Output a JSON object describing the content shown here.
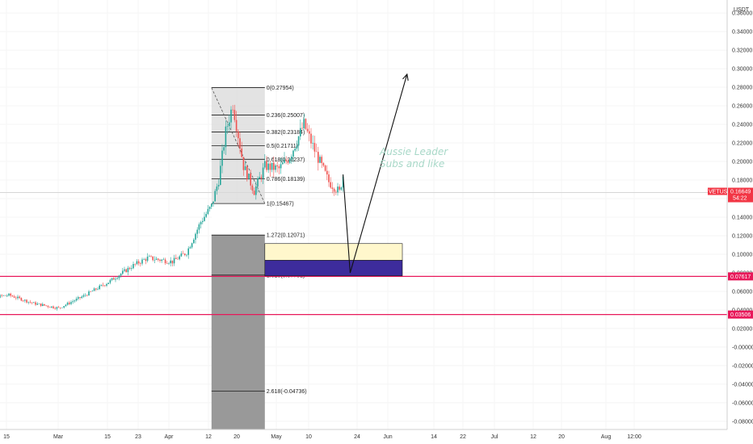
{
  "chart_data": {
    "type": "candlestick",
    "symbol": "VETUSDT",
    "quote_currency": "USDT",
    "ylim": [
      -0.0888,
      0.374
    ],
    "y_ticks": [
      "0.36000",
      "0.34000",
      "0.32000",
      "0.30000",
      "0.28000",
      "0.26000",
      "0.24000",
      "0.22000",
      "0.20000",
      "0.18000",
      "0.16000",
      "0.14000",
      "0.12000",
      "0.10000",
      "0.08000",
      "0.06000",
      "0.04000",
      "0.02000",
      "-0.00000",
      "-0.02000",
      "-0.04000",
      "-0.06000",
      "-0.08000"
    ],
    "x_labels": [
      "15",
      "Mar",
      "15",
      "23",
      "Apr",
      "12",
      "20",
      "May",
      "10",
      "24",
      "Jun",
      "14",
      "22",
      "Jul",
      "12",
      "20",
      "Aug",
      "12:00"
    ],
    "last_price": {
      "value": 0.16649,
      "label": "VETUSDT",
      "value_text": "0.16649",
      "countdown": "54:22",
      "color": "#f23645"
    },
    "horizontal_lines": [
      {
        "value": 0.07617,
        "label": "0.07617",
        "color": "#e8185a"
      },
      {
        "value": 0.03506,
        "label": "0.03506",
        "color": "#e8185a"
      }
    ],
    "fib_retracement": {
      "levels": [
        {
          "ratio": 0,
          "price": 0.27954,
          "label": "0(0.27954)"
        },
        {
          "ratio": 0.236,
          "price": 0.25007,
          "label": "0.236(0.25007)"
        },
        {
          "ratio": 0.382,
          "price": 0.23184,
          "label": "0.382(0.23184)"
        },
        {
          "ratio": 0.5,
          "price": 0.21711,
          "label": "0.5(0.21711)"
        },
        {
          "ratio": 0.618,
          "price": 0.20237,
          "label": "0.618(0.20237)"
        },
        {
          "ratio": 0.786,
          "price": 0.18139,
          "label": "0.786(0.18139)"
        },
        {
          "ratio": 1,
          "price": 0.15467,
          "label": "1(0.15467)"
        },
        {
          "ratio": 1.272,
          "price": 0.12071,
          "label": "1.272(0.12071)"
        },
        {
          "ratio": 1.618,
          "price": 0.07751,
          "label": "1.618(0.07751)"
        },
        {
          "ratio": 2.618,
          "price": -0.04736,
          "label": "2.618(-0.04736)"
        }
      ]
    },
    "zones": [
      {
        "name": "upper",
        "top": 0.1115,
        "bottom": 0.0935,
        "color": "#fff7cc"
      },
      {
        "name": "lower",
        "top": 0.0935,
        "bottom": 0.0768,
        "color": "#3d2c9c"
      }
    ],
    "projection": [
      {
        "date": "2021-05-20",
        "price": 0.186
      },
      {
        "date": "2021-05-22",
        "price": 0.08
      },
      {
        "date": "2021-06-07",
        "price": 0.294
      }
    ],
    "annotation": {
      "lines": [
        "Aussie Leader",
        "Subs and like"
      ]
    },
    "candle_colors": {
      "up": "#26a69a",
      "down": "#ef5350"
    },
    "price_path": [
      {
        "date": "2021-02-05",
        "price": 0.051
      },
      {
        "date": "2021-02-15",
        "price": 0.056
      },
      {
        "date": "2021-02-22",
        "price": 0.047
      },
      {
        "date": "2021-03-01",
        "price": 0.042
      },
      {
        "date": "2021-03-08",
        "price": 0.055
      },
      {
        "date": "2021-03-15",
        "price": 0.07
      },
      {
        "date": "2021-03-22",
        "price": 0.088
      },
      {
        "date": "2021-03-26",
        "price": 0.096
      },
      {
        "date": "2021-04-02",
        "price": 0.092
      },
      {
        "date": "2021-04-06",
        "price": 0.102
      },
      {
        "date": "2021-04-10",
        "price": 0.135
      },
      {
        "date": "2021-04-13",
        "price": 0.152
      },
      {
        "date": "2021-04-15",
        "price": 0.18
      },
      {
        "date": "2021-04-17",
        "price": 0.232
      },
      {
        "date": "2021-04-19",
        "price": 0.262
      },
      {
        "date": "2021-04-22",
        "price": 0.195
      },
      {
        "date": "2021-04-25",
        "price": 0.168
      },
      {
        "date": "2021-04-28",
        "price": 0.195
      },
      {
        "date": "2021-05-02",
        "price": 0.192
      },
      {
        "date": "2021-05-05",
        "price": 0.205
      },
      {
        "date": "2021-05-09",
        "price": 0.24
      },
      {
        "date": "2021-05-12",
        "price": 0.212
      },
      {
        "date": "2021-05-16",
        "price": 0.178
      },
      {
        "date": "2021-05-19",
        "price": 0.167
      },
      {
        "date": "2021-05-20",
        "price": 0.185
      }
    ]
  }
}
